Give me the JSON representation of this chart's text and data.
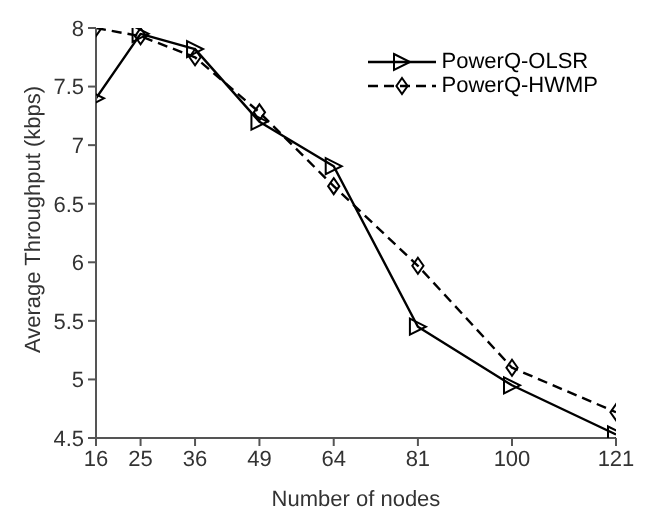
{
  "chart_data": {
    "type": "line",
    "xlabel": "Number of nodes",
    "ylabel": "Average Throughput (kbps)",
    "x": [
      16,
      25,
      36,
      49,
      64,
      81,
      100,
      121
    ],
    "series": [
      {
        "name": "PowerQ-OLSR",
        "color": "#000000",
        "values": [
          7.4,
          7.95,
          7.82,
          7.2,
          6.82,
          5.45,
          4.95,
          4.53
        ],
        "marker": "triangle",
        "line_style": "solid"
      },
      {
        "name": "PowerQ-HWMP",
        "color": "#000000",
        "values": [
          8.0,
          7.93,
          7.75,
          7.28,
          6.65,
          5.97,
          5.1,
          4.72
        ],
        "marker": "diamond",
        "line_style": "dashed"
      }
    ],
    "xlim": [
      16,
      121
    ],
    "xticks": [
      16,
      25,
      36,
      49,
      64,
      81,
      100,
      121
    ],
    "ylim": [
      4.5,
      8
    ],
    "yticks": [
      4.5,
      5,
      5.5,
      6,
      6.5,
      7,
      7.5,
      8
    ],
    "grid": false,
    "legend": "top right"
  }
}
